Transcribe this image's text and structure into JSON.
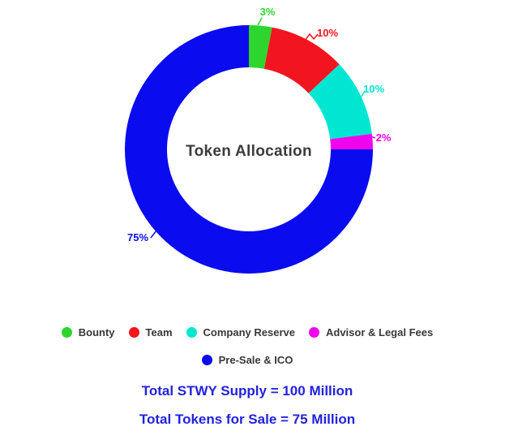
{
  "chart_data": {
    "type": "donut",
    "title": "Token Allocation",
    "center_label": "Token Allocation",
    "total": 100,
    "hole_ratio": 0.66,
    "legend_position": "bottom",
    "segments": [
      {
        "label": "Bounty",
        "value": 3,
        "pct_label": "3%",
        "color": "#2ED52E"
      },
      {
        "label": "Team",
        "value": 10,
        "pct_label": "10%",
        "color": "#F2141E"
      },
      {
        "label": "Company Reserve",
        "value": 10,
        "pct_label": "10%",
        "color": "#00E6D2"
      },
      {
        "label": "Advisor & Legal Fees",
        "value": 2,
        "pct_label": "2%",
        "color": "#EE05EE"
      },
      {
        "label": "Pre-Sale & ICO",
        "value": 75,
        "pct_label": "75%",
        "color": "#0B0BF0"
      }
    ]
  },
  "footer": {
    "line1": "Total STWY Supply = 100 Million",
    "line2": "Total Tokens for Sale = 75 Million",
    "color": "#2222DE"
  },
  "styles": {
    "center_title_color": "#3C3C3C",
    "legend_text_color": "#383838",
    "background": "#FFFFFF"
  }
}
